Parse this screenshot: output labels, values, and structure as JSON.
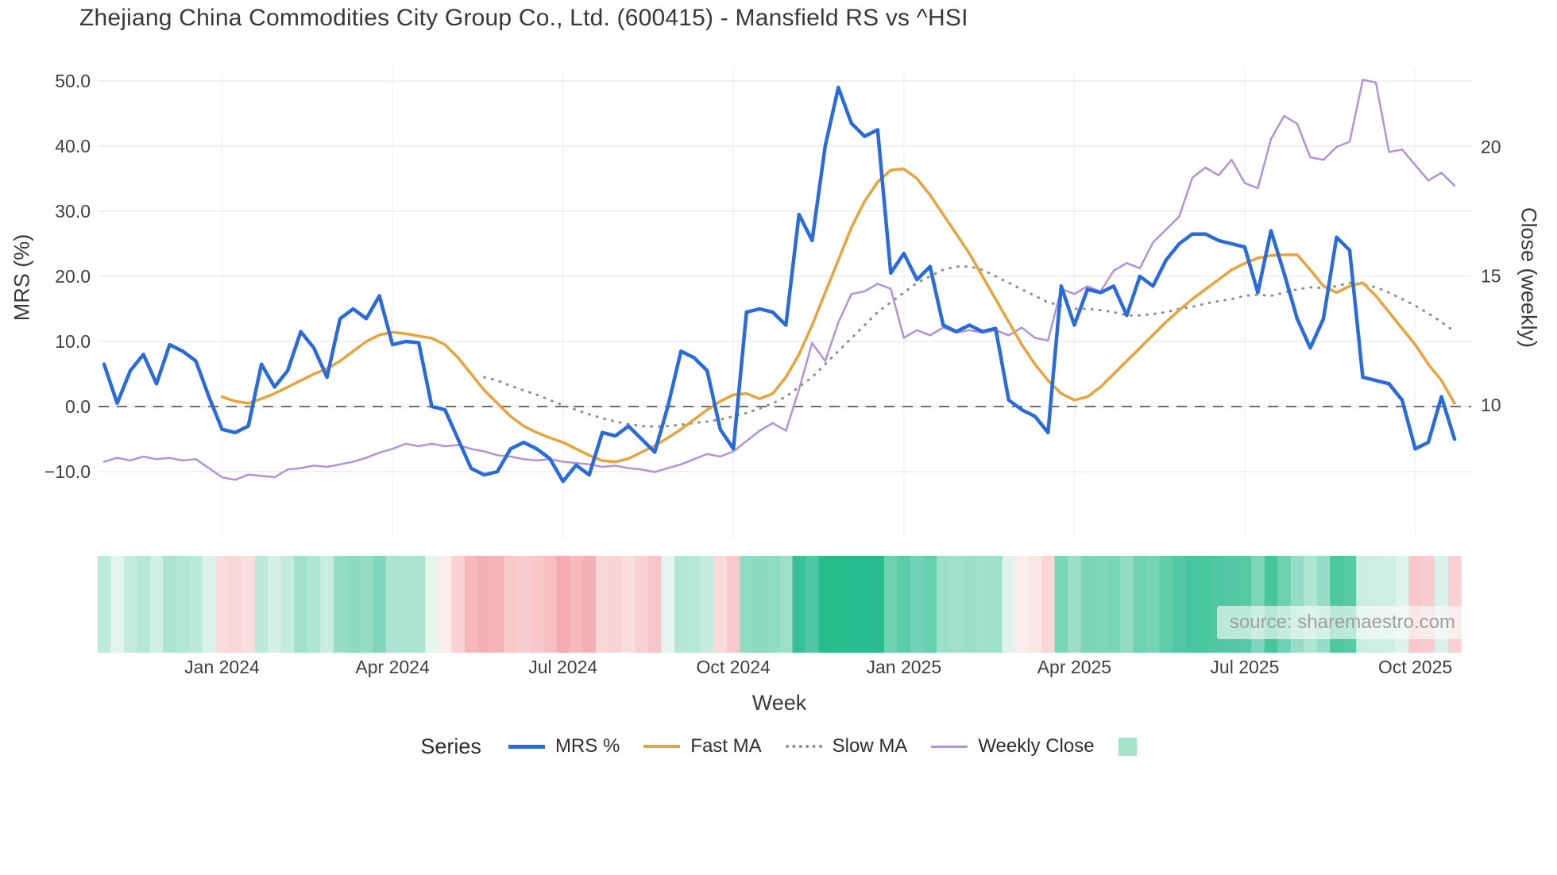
{
  "chart_data": {
    "type": "line",
    "title": "Zhejiang China Commodities City Group Co., Ltd. (600415) - Mansfield RS vs ^HSI",
    "xlabel": "Week",
    "ylabel_left": "MRS (%)",
    "ylabel_right": "Close (weekly)",
    "n_points": 104,
    "grid": true,
    "left_axis": {
      "ticks": [
        {
          "label": "50.0",
          "value": 50
        },
        {
          "label": "40.0",
          "value": 40
        },
        {
          "label": "30.0",
          "value": 30
        },
        {
          "label": "20.0",
          "value": 20
        },
        {
          "label": "10.0",
          "value": 10
        },
        {
          "label": "0.0",
          "value": 0
        },
        {
          "label": "−10.0",
          "value": -10
        }
      ],
      "range": [
        -14,
        52
      ]
    },
    "right_axis": {
      "ticks": [
        {
          "label": "20",
          "value": 20
        },
        {
          "label": "15",
          "value": 15
        },
        {
          "label": "10",
          "value": 10
        }
      ],
      "range": [
        6.5,
        23.5
      ]
    },
    "x_ticks": [
      {
        "label": "Jan 2024",
        "index": 9
      },
      {
        "label": "Apr 2024",
        "index": 22
      },
      {
        "label": "Jul 2024",
        "index": 35
      },
      {
        "label": "Oct 2024",
        "index": 48
      },
      {
        "label": "Jan 2025",
        "index": 61
      },
      {
        "label": "Apr 2025",
        "index": 74
      },
      {
        "label": "Jul 2025",
        "index": 87
      },
      {
        "label": "Oct 2025",
        "index": 100
      }
    ],
    "zero_line_value": 0,
    "series": [
      {
        "id": "mrs",
        "name": "MRS %",
        "axis": "left",
        "color": "#2a6bdb",
        "width": 4.5,
        "dash": null,
        "start_index": 0,
        "values": [
          6.5,
          0.5,
          5.5,
          8,
          3.5,
          9.5,
          8.5,
          7,
          1.5,
          -3.5,
          -4,
          -3,
          6.5,
          3,
          5.5,
          11.5,
          9,
          4.5,
          13.5,
          15,
          13.5,
          17,
          9.5,
          10,
          9.8,
          0,
          -0.5,
          -5,
          -9.5,
          -10.5,
          -10,
          -6.5,
          -5.5,
          -6.5,
          -8,
          -11.5,
          -9,
          -10.5,
          -4,
          -4.5,
          -3,
          -5,
          -7,
          0,
          8.5,
          7.5,
          5.5,
          -3.5,
          -6.5,
          14.5,
          15,
          14.5,
          12.5,
          29.5,
          25.5,
          40,
          49,
          43.5,
          41.5,
          42.5,
          20.5,
          23.5,
          19.5,
          21.5,
          12.5,
          11.5,
          12.5,
          11.5,
          12,
          1,
          -0.5,
          -1.5,
          -4,
          18.5,
          12.5,
          18,
          17.5,
          18.5,
          14,
          20,
          18.5,
          22.5,
          25,
          26.5,
          26.5,
          25.5,
          25,
          24.5,
          17.5,
          27,
          20.5,
          13.5,
          9,
          13.5,
          26,
          24,
          4.5,
          4,
          3.5,
          1,
          -6.5,
          -5.5,
          1.5,
          -5
        ]
      },
      {
        "id": "fast-ma",
        "name": "Fast MA",
        "axis": "left",
        "color": "#e8a33c",
        "width": 3.5,
        "dash": null,
        "start_index": 9,
        "values": [
          1.5,
          0.8,
          0.5,
          1.2,
          2,
          3,
          4,
          5,
          5.8,
          7,
          8.5,
          10,
          11,
          11.4,
          11.2,
          10.8,
          10.5,
          9.5,
          7.5,
          5,
          2.5,
          0.5,
          -1.5,
          -3,
          -4,
          -4.8,
          -5.5,
          -6.5,
          -7.5,
          -8.3,
          -8.5,
          -8,
          -7,
          -6,
          -4.8,
          -3.5,
          -2,
          -0.5,
          0.8,
          1.8,
          2,
          1.2,
          2,
          4.5,
          8,
          12.5,
          17.5,
          22.5,
          27.5,
          31.5,
          34.5,
          36.3,
          36.5,
          35,
          32.5,
          29.5,
          26.5,
          23.5,
          20,
          16.5,
          13,
          9.5,
          6.5,
          4,
          2,
          1,
          1.5,
          3,
          5,
          7,
          9,
          11,
          13,
          14.8,
          16.5,
          18,
          19.5,
          21,
          22,
          22.8,
          23.2,
          23.3,
          23.3,
          21,
          18.5,
          17.5,
          18.5,
          19,
          17,
          14.5,
          12,
          9.5,
          6.5,
          4,
          0.5
        ]
      },
      {
        "id": "slow-ma",
        "name": "Slow MA",
        "axis": "left",
        "color": "#8f8f8f",
        "width": 3,
        "dash": "1 9",
        "start_index": 29,
        "values": [
          4.5,
          4,
          3.2,
          2.5,
          1.8,
          1,
          0.2,
          -0.5,
          -1.2,
          -1.8,
          -2.3,
          -2.7,
          -3,
          -3.1,
          -3,
          -2.8,
          -2.5,
          -2.3,
          -2,
          -1.5,
          -1,
          -0.3,
          0.5,
          1.5,
          3,
          4.5,
          6.5,
          8.5,
          10.5,
          12.5,
          14.5,
          16,
          17.5,
          19,
          20,
          21,
          21.5,
          21.5,
          21,
          20,
          19,
          18,
          17,
          16,
          15.5,
          15,
          15,
          14.8,
          14.5,
          14,
          14,
          14.2,
          14.5,
          15,
          15.3,
          15.8,
          16.2,
          16.5,
          17,
          17.2,
          17,
          17.5,
          18,
          18.3,
          18.2,
          18.5,
          19,
          18.8,
          18.3,
          17.5,
          16.5,
          15.5,
          14.3,
          13,
          11.5
        ]
      },
      {
        "id": "weekly-close",
        "name": "Weekly Close",
        "axis": "right",
        "color": "#b392d8",
        "width": 2.5,
        "dash": null,
        "start_index": 0,
        "values": [
          7.8,
          7.95,
          7.85,
          8,
          7.9,
          7.95,
          7.85,
          7.9,
          7.55,
          7.2,
          7.1,
          7.3,
          7.25,
          7.2,
          7.5,
          7.55,
          7.65,
          7.6,
          7.7,
          7.8,
          7.95,
          8.15,
          8.3,
          8.5,
          8.4,
          8.5,
          8.4,
          8.45,
          8.3,
          8.2,
          8.05,
          8,
          7.9,
          7.85,
          7.9,
          7.8,
          7.75,
          7.7,
          7.6,
          7.65,
          7.55,
          7.5,
          7.4,
          7.55,
          7.7,
          7.9,
          8.1,
          8,
          8.2,
          8.6,
          9,
          9.3,
          9,
          10.6,
          12.4,
          11.7,
          13.2,
          14.3,
          14.4,
          14.7,
          14.5,
          12.6,
          12.9,
          12.7,
          13,
          12.8,
          12.9,
          12.8,
          12.9,
          12.7,
          13,
          12.6,
          12.5,
          14.5,
          14.3,
          14.6,
          14.4,
          15.2,
          15.5,
          15.3,
          16.3,
          16.8,
          17.3,
          18.8,
          19.2,
          18.9,
          19.5,
          18.6,
          18.4,
          20.3,
          21.2,
          20.9,
          19.6,
          19.5,
          20,
          20.2,
          22.6,
          22.5,
          19.8,
          19.9,
          19.3,
          18.7,
          19,
          18.5
        ]
      }
    ],
    "heatmap": {
      "derived_from_series": "mrs",
      "pos_color_max": "#29bd8e",
      "pos_color_min": "#e4f5ee",
      "neg_color_max": "#f4a7ad",
      "neg_color_min": "#fcefef",
      "pos_scale": 32,
      "neg_scale": 12
    }
  },
  "legend": {
    "title": "Series",
    "entries": [
      {
        "label": "MRS %",
        "color": "#2a6bdb",
        "style": "solid",
        "thickness": 5
      },
      {
        "label": "Fast MA",
        "color": "#e8a33c",
        "style": "solid",
        "thickness": 4
      },
      {
        "label": "Slow MA",
        "color": "#8f8f8f",
        "style": "dotted",
        "thickness": 4
      },
      {
        "label": "Weekly Close",
        "color": "#b392d8",
        "style": "solid",
        "thickness": 3
      }
    ],
    "heatmap_swatch_color": "#a6e3ca"
  },
  "source_text": "source: sharemaestro.com"
}
